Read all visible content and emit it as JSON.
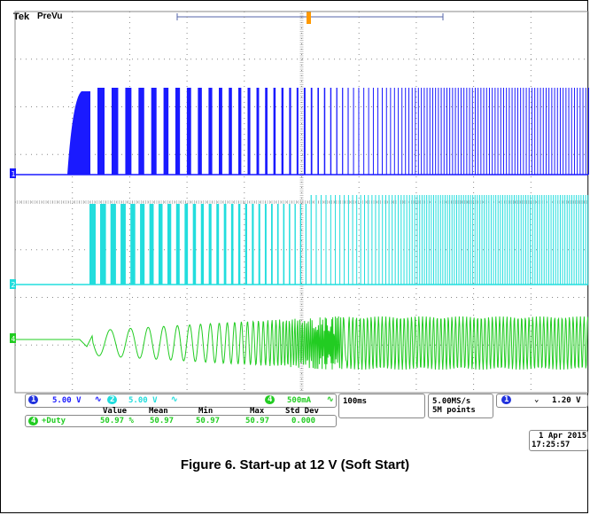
{
  "header": {
    "brand": "Tek",
    "mode": "PreVu"
  },
  "channels": [
    {
      "id": "1",
      "scale": "5.00 V",
      "color": "#1a1aff"
    },
    {
      "id": "2",
      "scale": "5.00 V",
      "color": "#22dddd"
    },
    {
      "id": "4",
      "scale": "500mA",
      "color": "#22cc22"
    }
  ],
  "timebase": {
    "value": "100ms"
  },
  "sampling": {
    "rate": "5.00MS/s",
    "points": "5M points"
  },
  "trigger": {
    "channel": "1",
    "slope_icon": "falling-edge-icon",
    "level": "1.20 V"
  },
  "measurements": {
    "headers": [
      "Value",
      "Mean",
      "Min",
      "Max",
      "Std Dev"
    ],
    "rows": [
      {
        "channel": "4",
        "name": "+Duty",
        "value": "50.97 %",
        "mean": "50.97",
        "min": "50.97",
        "max": "50.97",
        "std_dev": "0.000"
      }
    ]
  },
  "datetime": {
    "date": "1 Apr 2015",
    "time": "17:25:57"
  },
  "caption": "Figure 6. Start-up at 12 V (Soft Start)",
  "colors": {
    "grid": "#777777",
    "background": "#ffffff"
  }
}
